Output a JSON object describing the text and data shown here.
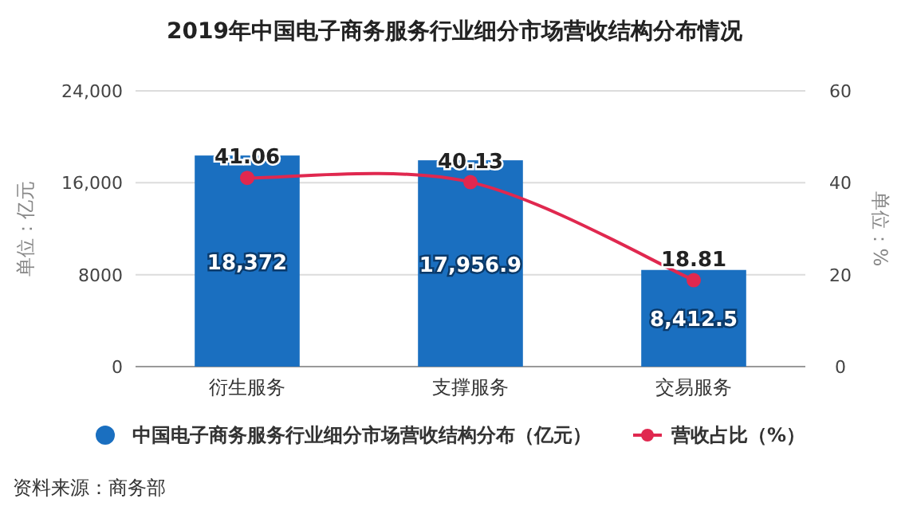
{
  "chart_data": {
    "type": "bar",
    "title": "2019年中国电子商务服务行业细分市场营收结构分布情况",
    "categories": [
      "衍生服务",
      "支撑服务",
      "交易服务"
    ],
    "series": [
      {
        "name": "中国电子商务服务行业细分市场营收结构分布（亿元）",
        "color": "#1a6fc0",
        "values": [
          18372,
          17956.9,
          8412.5
        ],
        "value_labels": [
          "18,372",
          "17,956.9",
          "8,412.5"
        ]
      },
      {
        "name": "营收占比（%）",
        "type": "line",
        "axis": "y2",
        "color": "#e0284f",
        "values": [
          41.06,
          40.13,
          18.81
        ],
        "value_labels": [
          "41.06",
          "40.13",
          "18.81"
        ]
      }
    ],
    "ylim": [
      0,
      24000
    ],
    "yticks": [
      0,
      {
        "value": 8000,
        "label": "8000"
      },
      {
        "value": 16000,
        "label": "16,000"
      },
      {
        "value": 24000,
        "label": "24,000"
      }
    ],
    "y2lim": [
      0,
      60
    ],
    "y2ticks": [
      0,
      20,
      40,
      60
    ],
    "ylabel": "单位：亿元",
    "y2label": "单位：%",
    "grid": "y",
    "legend": "bottom",
    "marker": "circle",
    "annotations": [
      "资料来源：商务部"
    ]
  }
}
